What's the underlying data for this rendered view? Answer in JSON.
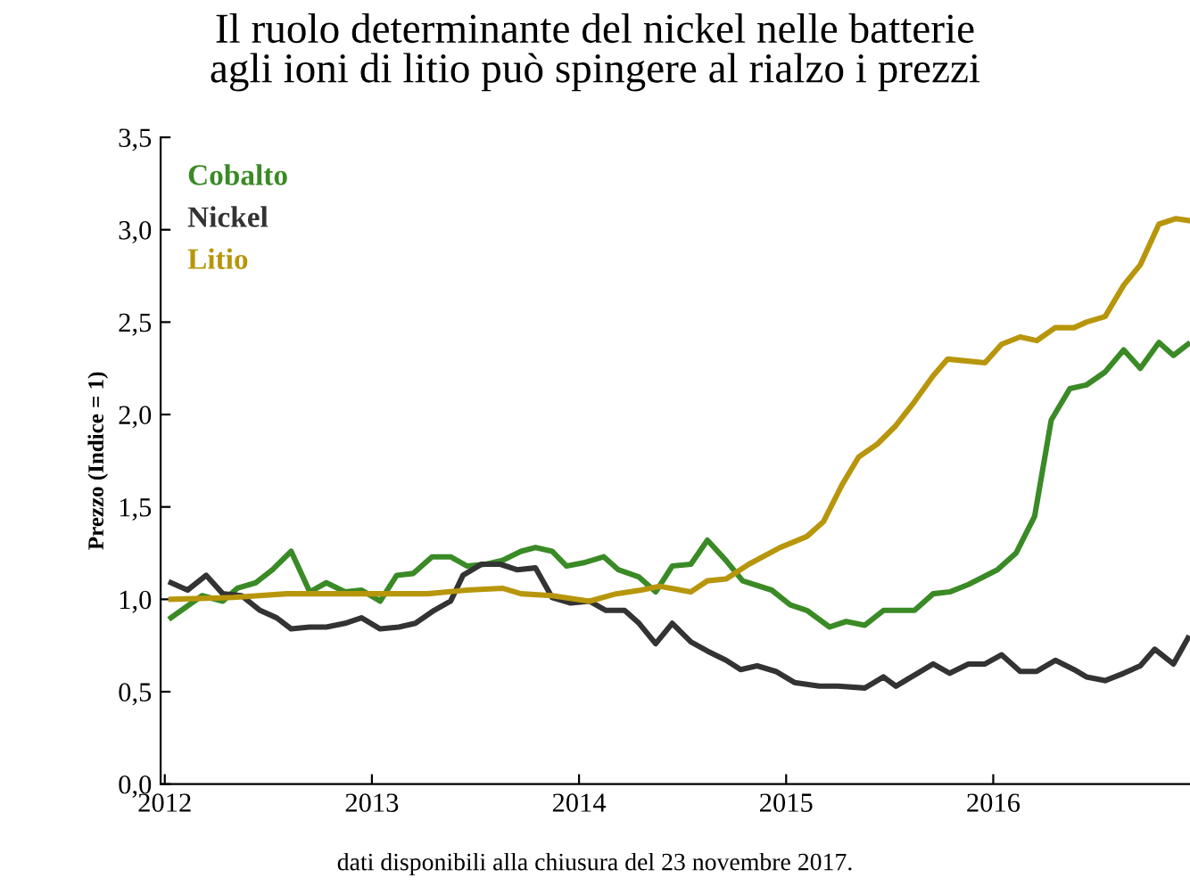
{
  "chart_data": {
    "type": "line",
    "title": "Il ruolo determinante del nickel nelle batterie\nagli ioni di litio può spingere al rialzo i prezzi",
    "ylabel": "Prezzo (Indice = 1)",
    "annotations": [
      "dati disponibili alla chiusura del 23 novembre 2017."
    ],
    "xlim": [
      2011.98,
      2016.95
    ],
    "xticks": [
      2012,
      2013,
      2014,
      2015,
      2016
    ],
    "ylim": [
      0,
      3.5
    ],
    "yticks": [
      {
        "value": 0,
        "label": "0,0"
      },
      {
        "value": 0.5,
        "label": "0,5"
      },
      {
        "value": 1,
        "label": "1,0"
      },
      {
        "value": 1.5,
        "label": "1,5"
      },
      {
        "value": 2,
        "label": "2,0"
      },
      {
        "value": 2.5,
        "label": "2,5"
      },
      {
        "value": 3,
        "label": "3,0"
      },
      {
        "value": 3.5,
        "label": "3,5"
      }
    ],
    "grid": false,
    "legend": "top left",
    "marker": "none",
    "line_style": "solid",
    "series": [
      {
        "name": "Cobalto",
        "color": "#3a8a26",
        "x": [
          2012.03,
          2012.18,
          2012.28,
          2012.35,
          2012.44,
          2012.52,
          2012.61,
          2012.7,
          2012.78,
          2012.87,
          2012.95,
          2013.04,
          2013.12,
          2013.2,
          2013.29,
          2013.38,
          2013.46,
          2013.55,
          2013.63,
          2013.72,
          2013.79,
          2013.87,
          2013.94,
          2014.03,
          2014.12,
          2014.19,
          2014.29,
          2014.37,
          2014.45,
          2014.54,
          2014.62,
          2014.71,
          2014.79,
          2014.93,
          2015.02,
          2015.1,
          2015.21,
          2015.29,
          2015.38,
          2015.47,
          2015.62,
          2015.71,
          2015.79,
          2015.88,
          2016.02,
          2016.11,
          2016.2,
          2016.28,
          2016.37,
          2016.45,
          2016.54,
          2016.63,
          2016.71,
          2016.8,
          2016.87,
          2016.94
        ],
        "values": [
          0.9,
          1.02,
          0.99,
          1.06,
          1.09,
          1.16,
          1.26,
          1.04,
          1.09,
          1.04,
          1.05,
          0.99,
          1.13,
          1.14,
          1.23,
          1.23,
          1.18,
          1.19,
          1.21,
          1.26,
          1.28,
          1.26,
          1.18,
          1.2,
          1.23,
          1.16,
          1.12,
          1.04,
          1.18,
          1.19,
          1.32,
          1.21,
          1.1,
          1.05,
          0.97,
          0.94,
          0.85,
          0.88,
          0.86,
          0.94,
          0.94,
          1.03,
          1.04,
          1.08,
          1.16,
          1.25,
          1.45,
          1.97,
          2.14,
          2.16,
          2.23,
          2.35,
          2.25,
          2.39,
          2.32,
          2.38
        ]
      },
      {
        "name": "Nickel",
        "color": "#333333",
        "x": [
          2012.03,
          2012.11,
          2012.2,
          2012.28,
          2012.37,
          2012.46,
          2012.54,
          2012.61,
          2012.7,
          2012.78,
          2012.87,
          2012.95,
          2013.04,
          2013.13,
          2013.21,
          2013.3,
          2013.38,
          2013.44,
          2013.53,
          2013.62,
          2013.7,
          2013.79,
          2013.87,
          2013.96,
          2014.05,
          2014.13,
          2014.22,
          2014.29,
          2014.37,
          2014.45,
          2014.54,
          2014.62,
          2014.71,
          2014.78,
          2014.86,
          2014.95,
          2015.04,
          2015.16,
          2015.25,
          2015.38,
          2015.47,
          2015.53,
          2015.62,
          2015.71,
          2015.79,
          2015.88,
          2015.96,
          2016.04,
          2016.13,
          2016.21,
          2016.3,
          2016.39,
          2016.45,
          2016.54,
          2016.63,
          2016.71,
          2016.78,
          2016.87,
          2016.94
        ],
        "values": [
          1.09,
          1.05,
          1.13,
          1.03,
          1.02,
          0.94,
          0.9,
          0.84,
          0.85,
          0.85,
          0.87,
          0.9,
          0.84,
          0.85,
          0.87,
          0.94,
          0.99,
          1.13,
          1.19,
          1.19,
          1.16,
          1.17,
          1.01,
          0.98,
          0.99,
          0.94,
          0.94,
          0.87,
          0.76,
          0.87,
          0.77,
          0.72,
          0.67,
          0.62,
          0.64,
          0.61,
          0.55,
          0.53,
          0.53,
          0.52,
          0.58,
          0.53,
          0.59,
          0.65,
          0.6,
          0.65,
          0.65,
          0.7,
          0.61,
          0.61,
          0.67,
          0.62,
          0.58,
          0.56,
          0.6,
          0.64,
          0.73,
          0.65,
          0.79
        ]
      },
      {
        "name": "Litio",
        "color": "#b8960c",
        "x": [
          2012.03,
          2012.33,
          2012.59,
          2012.93,
          2013.27,
          2013.46,
          2013.63,
          2013.72,
          2013.87,
          2014.05,
          2014.18,
          2014.3,
          2014.39,
          2014.54,
          2014.62,
          2014.71,
          2014.82,
          2014.97,
          2015.1,
          2015.18,
          2015.27,
          2015.35,
          2015.44,
          2015.53,
          2015.62,
          2015.71,
          2015.78,
          2015.96,
          2016.04,
          2016.13,
          2016.21,
          2016.3,
          2016.39,
          2016.45,
          2016.54,
          2016.63,
          2016.71,
          2016.8,
          2016.88,
          2016.94
        ],
        "values": [
          1.0,
          1.01,
          1.03,
          1.03,
          1.03,
          1.05,
          1.06,
          1.03,
          1.02,
          0.99,
          1.03,
          1.05,
          1.07,
          1.04,
          1.1,
          1.11,
          1.19,
          1.28,
          1.34,
          1.42,
          1.62,
          1.77,
          1.84,
          1.94,
          2.07,
          2.21,
          2.3,
          2.28,
          2.38,
          2.42,
          2.4,
          2.47,
          2.47,
          2.5,
          2.53,
          2.7,
          2.81,
          3.03,
          3.06,
          3.05
        ]
      }
    ]
  }
}
